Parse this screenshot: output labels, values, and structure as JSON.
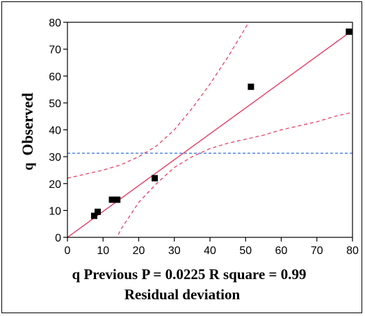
{
  "chart_data": {
    "type": "scatter",
    "title": "",
    "xlabel_line1": "q Previous P = 0.0225 R square = 0.99",
    "xlabel_line2": "Residual deviation",
    "ylabel_prefix": "q",
    "ylabel_main": "Observed",
    "xlim": [
      0,
      80
    ],
    "ylim": [
      0,
      80
    ],
    "x_ticks": [
      0,
      10,
      20,
      30,
      40,
      50,
      60,
      70,
      80
    ],
    "y_ticks": [
      0,
      10,
      20,
      30,
      40,
      50,
      60,
      70,
      80
    ],
    "points": [
      {
        "x": 7.5,
        "y": 8
      },
      {
        "x": 8.5,
        "y": 9.5
      },
      {
        "x": 12.5,
        "y": 14
      },
      {
        "x": 14,
        "y": 14
      },
      {
        "x": 24.5,
        "y": 22
      },
      {
        "x": 51.5,
        "y": 56
      },
      {
        "x": 79,
        "y": 76.5
      }
    ],
    "fit_line": [
      {
        "x": 0,
        "y": 0
      },
      {
        "x": 80,
        "y": 77
      }
    ],
    "mean_line_y": 31.3,
    "confidence_upper": [
      {
        "x": 0,
        "y": 22
      },
      {
        "x": 5,
        "y": 23.5
      },
      {
        "x": 10,
        "y": 25
      },
      {
        "x": 15,
        "y": 27
      },
      {
        "x": 20,
        "y": 30
      },
      {
        "x": 25,
        "y": 34
      },
      {
        "x": 30,
        "y": 40
      },
      {
        "x": 35,
        "y": 48
      },
      {
        "x": 40,
        "y": 57
      },
      {
        "x": 45,
        "y": 67
      },
      {
        "x": 50,
        "y": 78
      },
      {
        "x": 52.5,
        "y": 84
      }
    ],
    "confidence_lower": [
      {
        "x": 13.5,
        "y": -1
      },
      {
        "x": 15,
        "y": 3
      },
      {
        "x": 20,
        "y": 13
      },
      {
        "x": 25,
        "y": 20
      },
      {
        "x": 30,
        "y": 26
      },
      {
        "x": 35,
        "y": 30
      },
      {
        "x": 40,
        "y": 33
      },
      {
        "x": 45,
        "y": 35
      },
      {
        "x": 50,
        "y": 36.5
      },
      {
        "x": 55,
        "y": 38
      },
      {
        "x": 60,
        "y": 40
      },
      {
        "x": 65,
        "y": 41.5
      },
      {
        "x": 70,
        "y": 43
      },
      {
        "x": 75,
        "y": 45
      },
      {
        "x": 80,
        "y": 46.5
      }
    ],
    "colors": {
      "fit": "#e8305a",
      "confidence": "#e8305a",
      "mean": "#2f6fe0",
      "points": "#000000",
      "axis": "#000000"
    },
    "grid": false
  }
}
